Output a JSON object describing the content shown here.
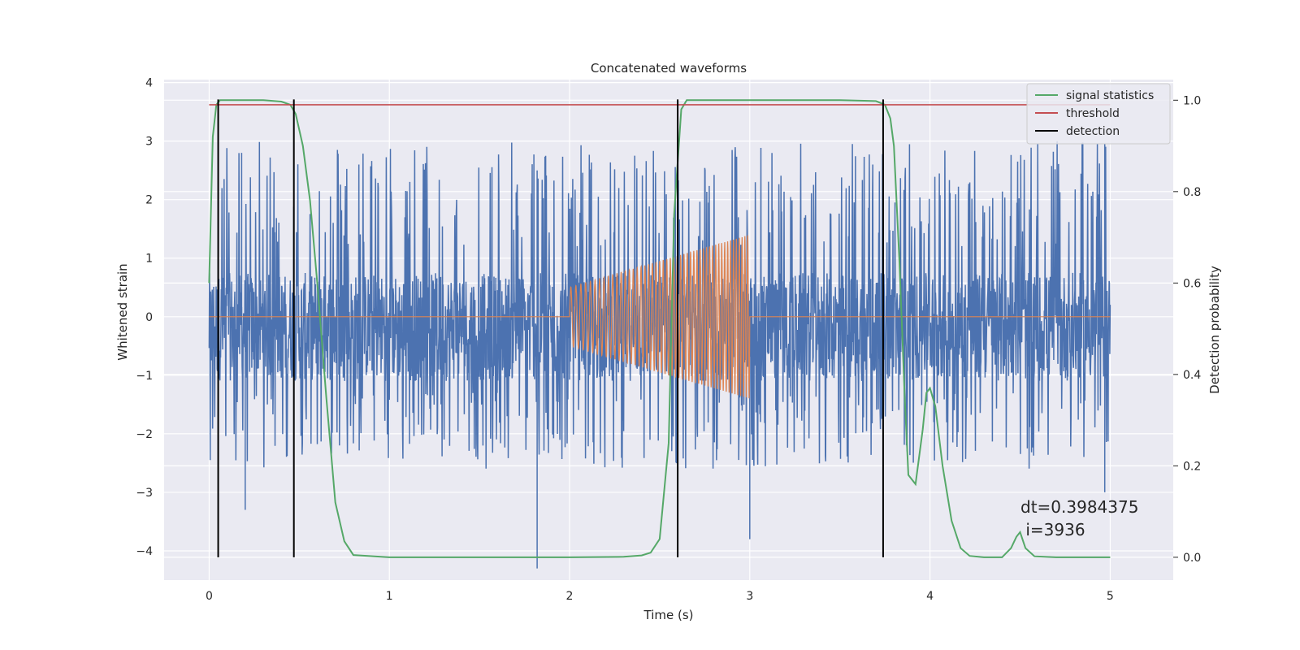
{
  "chart_data": {
    "type": "line",
    "title": "Concatenated waveforms",
    "xlabel": "Time (s)",
    "ylabel": "Whitened strain",
    "ylabel_right": "Detection probability",
    "xlim": [
      -0.25,
      5.35
    ],
    "ylim": [
      -4.5,
      4.05
    ],
    "ylim_right": [
      -0.05,
      1.045
    ],
    "xticks": [
      "0",
      "1",
      "2",
      "3",
      "4",
      "5"
    ],
    "yticks": [
      "4",
      "3",
      "2",
      "1",
      "0",
      "−1",
      "−2",
      "−3",
      "−4"
    ],
    "yticks_right": [
      "0.0",
      "0.2",
      "0.4",
      "0.6",
      "0.8",
      "1.0"
    ],
    "grid": true,
    "legend_position": "top-right",
    "legend": [
      "signal statistics",
      "threshold",
      "detection"
    ],
    "annotation_lines": [
      "dt=0.3984375",
      " i=3936"
    ],
    "colors": {
      "background": "#eaeaf2",
      "grid": "#ffffff",
      "noise": "#4c72b0",
      "chirp": "#dd8452",
      "signal_statistics": "#55a868",
      "threshold": "#c44e52",
      "detection": "#000000"
    },
    "noise": {
      "x_range": [
        0,
        5
      ],
      "band": [
        -1.1,
        0.75
      ],
      "typical_peak_range": [
        -2.6,
        3.0
      ],
      "outliers": [
        [
          0.18,
          2.8
        ],
        [
          0.2,
          -3.3
        ],
        [
          1.82,
          -4.3
        ],
        [
          1.82,
          2.5
        ],
        [
          3.0,
          -3.8
        ],
        [
          4.97,
          2.95
        ],
        [
          4.97,
          -3.0
        ]
      ]
    },
    "chirp": {
      "x_range": [
        2.0,
        3.0
      ],
      "amplitude_start": 0.5,
      "amplitude_end": 1.4,
      "cycles": 50
    },
    "series": [
      {
        "name": "signal statistics",
        "axis": "right",
        "x": [
          0.0,
          0.02,
          0.04,
          0.06,
          0.08,
          0.1,
          0.2,
          0.3,
          0.4,
          0.45,
          0.48,
          0.52,
          0.56,
          0.6,
          0.65,
          0.7,
          0.75,
          0.8,
          1.0,
          1.5,
          2.0,
          2.3,
          2.4,
          2.45,
          2.5,
          2.55,
          2.58,
          2.62,
          2.65,
          2.7,
          3.0,
          3.5,
          3.7,
          3.75,
          3.78,
          3.8,
          3.83,
          3.86,
          3.88,
          3.92,
          3.96,
          3.98,
          4.0,
          4.03,
          4.07,
          4.12,
          4.17,
          4.22,
          4.3,
          4.4,
          4.45,
          4.48,
          4.5,
          4.53,
          4.58,
          4.7,
          5.0
        ],
        "y": [
          0.6,
          0.92,
          0.99,
          1.0,
          1.0,
          1.0,
          1.0,
          1.0,
          0.997,
          0.99,
          0.97,
          0.9,
          0.78,
          0.6,
          0.35,
          0.12,
          0.035,
          0.005,
          0.0,
          0.0,
          0.0,
          0.001,
          0.004,
          0.01,
          0.04,
          0.25,
          0.75,
          0.98,
          1.0,
          1.0,
          1.0,
          1.0,
          0.998,
          0.99,
          0.96,
          0.9,
          0.65,
          0.35,
          0.18,
          0.16,
          0.28,
          0.36,
          0.37,
          0.33,
          0.2,
          0.08,
          0.02,
          0.003,
          0.0,
          0.0,
          0.02,
          0.045,
          0.055,
          0.02,
          0.002,
          0.0,
          0.0
        ]
      },
      {
        "name": "threshold",
        "axis": "right",
        "x": [
          0,
          5
        ],
        "y": [
          0.99,
          0.99
        ]
      }
    ],
    "detections": [
      0.05,
      0.47,
      2.6,
      3.74
    ]
  }
}
